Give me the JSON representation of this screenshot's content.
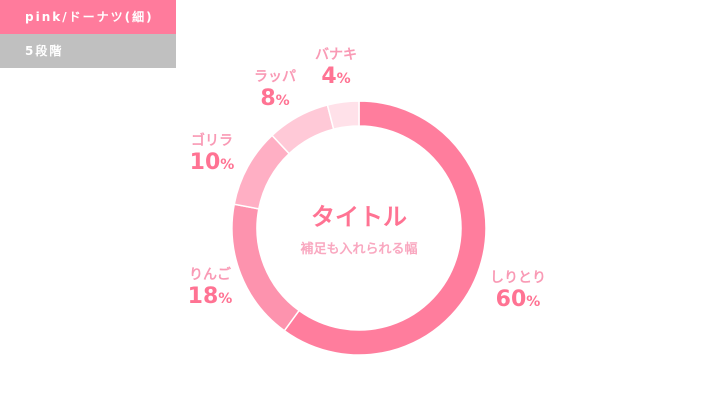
{
  "header": {
    "label": "pink/ドーナツ(細)",
    "sublabel": "5段階"
  },
  "chart_data": {
    "type": "pie",
    "variant": "donut",
    "title": "タイトル",
    "subtitle": "補足も入れられる幅",
    "unit": "%",
    "slices": [
      {
        "label": "しりとり",
        "value": 60,
        "color": "#ff7d9d"
      },
      {
        "label": "りんご",
        "value": 18,
        "color": "#fd93ae"
      },
      {
        "label": "ゴリラ",
        "value": 10,
        "color": "#ffafc4"
      },
      {
        "label": "ラッパ",
        "value": 8,
        "color": "#ffc9d7"
      },
      {
        "label": "バナキ",
        "value": 4,
        "color": "#ffe1e9"
      }
    ]
  }
}
